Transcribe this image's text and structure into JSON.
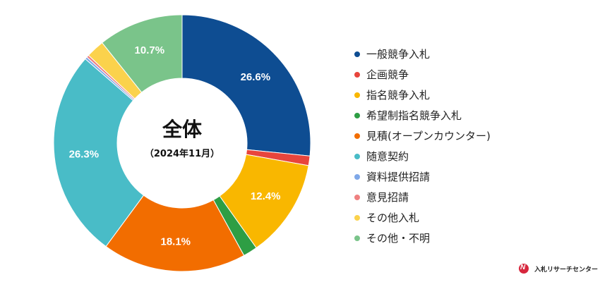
{
  "chart_data": {
    "type": "pie",
    "title": "全体",
    "subtitle": "（2024年11月）",
    "slices": [
      {
        "label": "一般競争入札",
        "value": 26.6,
        "color": "#0e4d92",
        "show_label": "26.6%"
      },
      {
        "label": "企画競争",
        "value": 1.2,
        "color": "#e8453c",
        "show_label": ""
      },
      {
        "label": "指名競争入札",
        "value": 12.4,
        "color": "#f9b700",
        "show_label": "12.4%"
      },
      {
        "label": "希望制指名競争入札",
        "value": 1.8,
        "color": "#2e9e44",
        "show_label": ""
      },
      {
        "label": "見積(オープンカウンター)",
        "value": 18.1,
        "color": "#f26d00",
        "show_label": "18.1%"
      },
      {
        "label": "随意契約",
        "value": 26.3,
        "color": "#49bcc7",
        "show_label": "26.3%"
      },
      {
        "label": "資料提供招請",
        "value": 0.3,
        "color": "#7fa8e8",
        "show_label": ""
      },
      {
        "label": "意見招請",
        "value": 0.3,
        "color": "#ef8080",
        "show_label": ""
      },
      {
        "label": "その他入札",
        "value": 2.3,
        "color": "#fbd24c",
        "show_label": ""
      },
      {
        "label": "その他・不明",
        "value": 10.7,
        "color": "#7ac48a",
        "show_label": "10.7%"
      }
    ],
    "legend": "right"
  },
  "brand": {
    "name": "入札リサーチセンター",
    "logo_letter": "N"
  }
}
